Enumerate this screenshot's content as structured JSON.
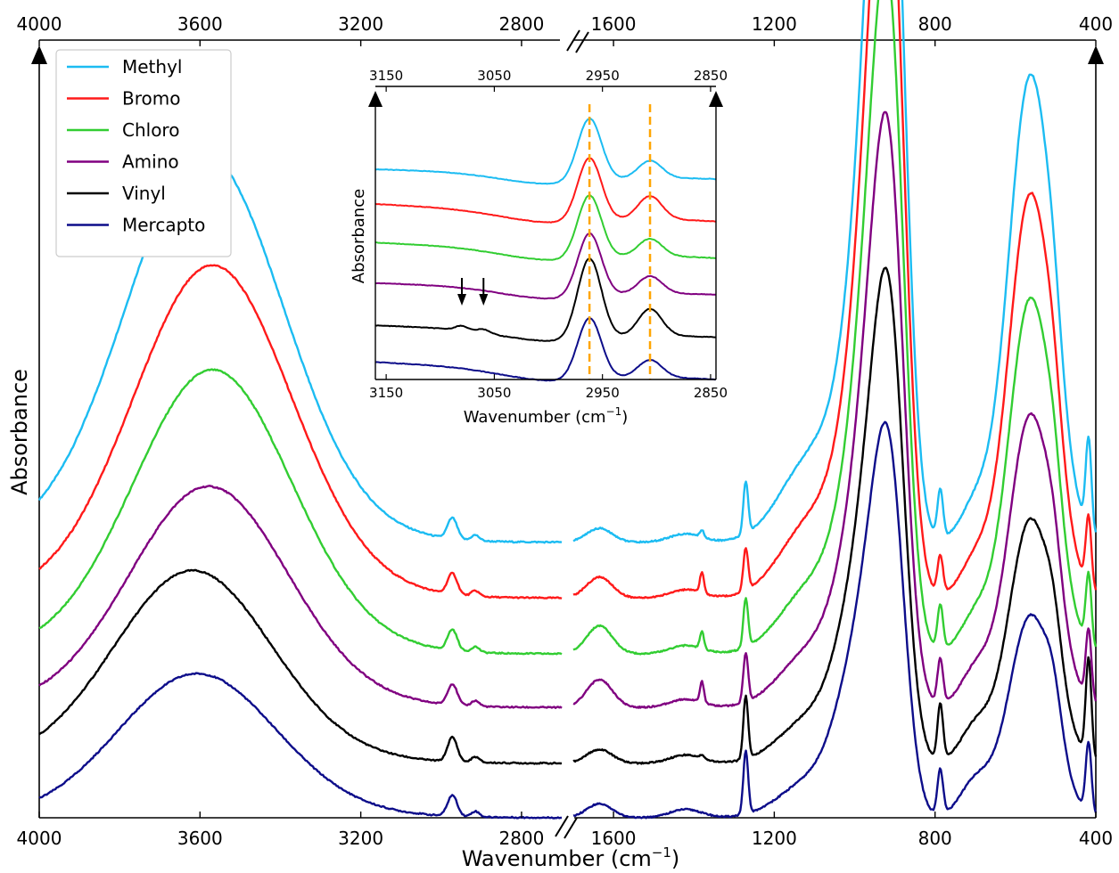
{
  "chart_data": [
    {
      "type": "line",
      "ylabel": "Absorbance",
      "xlabel_main": "Wavenumber (cm",
      "xlabel_exp": "−1",
      "xlabel_close": ")",
      "x_axis": "broken, reversed",
      "left_range": [
        4000,
        2700
      ],
      "right_range": [
        1700,
        400
      ],
      "ticks_left": [
        4000,
        3600,
        3200,
        2800
      ],
      "ticks_right": [
        1600,
        1200,
        800,
        400
      ],
      "y_ticks": "none",
      "legend_position": "top-left",
      "legend": [
        "Methyl",
        "Bromo",
        "Chloro",
        "Amino",
        "Vinyl",
        "Mercapto"
      ],
      "offsets": [
        0.395,
        0.315,
        0.235,
        0.158,
        0.078,
        0.0
      ],
      "series": [
        {
          "name": "Methyl",
          "color": "#1cbcf2",
          "features": {
            "oh_peak": {
              "x": 3590,
              "y": 0.55
            },
            "s2960": 0.03,
            "s2910": 0.008,
            "s1630": 0.02,
            "s1380": 0.01,
            "s1270": 0.075,
            "p940": 0.69,
            "p905": 0.7,
            "p790": 0.07,
            "p560": 0.67,
            "p420": 0.13
          }
        },
        {
          "name": "Bromo",
          "color": "#ff1a1a",
          "features": {
            "oh_peak": {
              "x": 3570,
              "y": 0.47
            },
            "s2960": 0.03,
            "s2910": 0.008,
            "s1630": 0.03,
            "s1380": 0.03,
            "s1270": 0.06,
            "p940": 0.63,
            "p905": 0.63,
            "p790": 0.055,
            "p560": 0.58,
            "p420": 0.1
          }
        },
        {
          "name": "Chloro",
          "color": "#32cd32",
          "features": {
            "oh_peak": {
              "x": 3570,
              "y": 0.4
            },
            "s2960": 0.03,
            "s2910": 0.008,
            "s1630": 0.04,
            "s1380": 0.025,
            "s1270": 0.07,
            "p940": 0.55,
            "p905": 0.55,
            "p790": 0.065,
            "p560": 0.51,
            "p420": 0.1
          }
        },
        {
          "name": "Amino",
          "color": "#800080",
          "features": {
            "oh_peak": {
              "x": 3580,
              "y": 0.31
            },
            "s2960": 0.03,
            "s2910": 0.008,
            "s1630": 0.04,
            "s1380": 0.03,
            "s1270": 0.07,
            "p940": 0.47,
            "p905": 0.47,
            "p790": 0.065,
            "p560": 0.42,
            "p420": 0.1
          }
        },
        {
          "name": "Vinyl",
          "color": "#000000",
          "features": {
            "oh_peak": {
              "x": 3620,
              "y": 0.27
            },
            "s2960": 0.035,
            "s2910": 0.008,
            "s1630": 0.02,
            "s1380": 0.005,
            "s1270": 0.09,
            "p940": 0.38,
            "p905": 0.4,
            "p790": 0.08,
            "p560": 0.35,
            "p420": 0.14
          }
        },
        {
          "name": "Mercapto",
          "color": "#0d0d8a",
          "features": {
            "oh_peak": {
              "x": 3610,
              "y": 0.2
            },
            "s2960": 0.03,
            "s2910": 0.008,
            "s1630": 0.02,
            "s1380": 0.0,
            "s1270": 0.09,
            "p940": 0.31,
            "p905": 0.31,
            "p790": 0.065,
            "p560": 0.29,
            "p420": 0.1
          }
        }
      ]
    },
    {
      "type": "line",
      "role": "inset",
      "ylabel": "Absorbance",
      "xlabel_main": "Wavenumber (cm",
      "xlabel_exp": "−1",
      "xlabel_close": ")",
      "x_axis": "reversed",
      "xlim": [
        3160,
        2845
      ],
      "ticks": [
        3150,
        3050,
        2950,
        2850
      ],
      "guide_lines": [
        2962,
        2906
      ],
      "guide_color": "#ffa500",
      "arrows_at": [
        3080,
        3060
      ],
      "series": [
        {
          "name": "Methyl",
          "color": "#1cbcf2",
          "base": [
            0.545,
            0.52
          ],
          "p1": 0.165,
          "p2": 0.045
        },
        {
          "name": "Bromo",
          "color": "#ff1a1a",
          "base": [
            0.455,
            0.41
          ],
          "p1": 0.165,
          "p2": 0.06
        },
        {
          "name": "Chloro",
          "color": "#32cd32",
          "base": [
            0.355,
            0.315
          ],
          "p1": 0.165,
          "p2": 0.045
        },
        {
          "name": "Amino",
          "color": "#800080",
          "base": [
            0.25,
            0.22
          ],
          "p1": 0.165,
          "p2": 0.045
        },
        {
          "name": "Vinyl",
          "color": "#000000",
          "base": [
            0.14,
            0.11
          ],
          "p1": 0.21,
          "p2": 0.07
        },
        {
          "name": "Mercapto",
          "color": "#0d0d8a",
          "base": [
            0.045,
            0.0
          ],
          "p1": 0.16,
          "p2": 0.045
        }
      ]
    }
  ]
}
